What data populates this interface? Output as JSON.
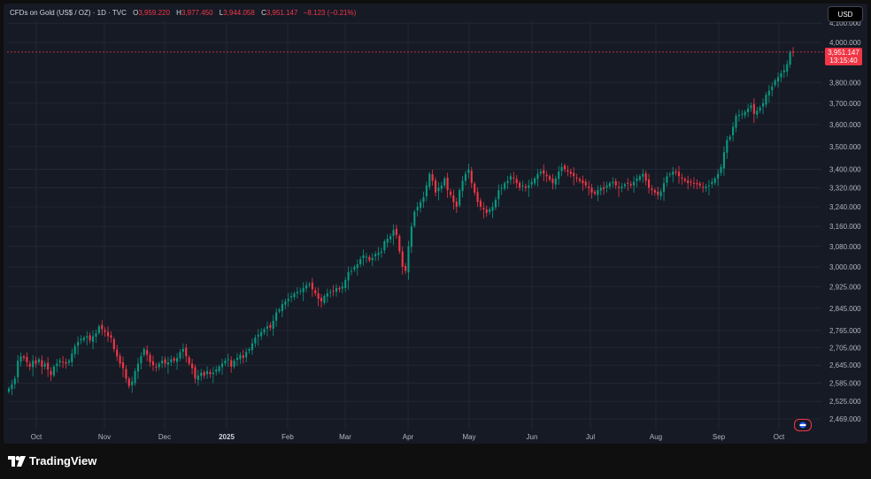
{
  "legend": {
    "symbol": "CFDs on Gold (US$ / OZ) · 1D · TVC",
    "open_label": "O",
    "open": "3,959.220",
    "high_label": "H",
    "high": "3,977.450",
    "low_label": "L",
    "low": "3,944.058",
    "close_label": "C",
    "close": "3,951.147",
    "change": "−8.123 (−0.21%)"
  },
  "currency_button": "USD",
  "last_price": "3,951.147",
  "countdown": "13:15:40",
  "brand": "TradingView",
  "colors": {
    "up": "#089981",
    "down": "#f23645",
    "background": "#161a25",
    "grid": "#232733"
  },
  "chart_data": {
    "type": "candlestick",
    "y_axis": {
      "ticks": [
        2469,
        2525,
        2585,
        2645,
        2705,
        2765,
        2845,
        2925,
        3000,
        3080,
        3160,
        3240,
        3320,
        3400,
        3500,
        3600,
        3700,
        3800,
        4000,
        4100
      ],
      "tick_labels": [
        "2,469.000",
        "2,525.000",
        "2,585.000",
        "2,645.000",
        "2,705.000",
        "2,765.000",
        "2,845.000",
        "2,925.000",
        "3,000.000",
        "3,080.000",
        "3,160.000",
        "3,240.000",
        "3,320.000",
        "3,400.000",
        "3,500.000",
        "3,600.000",
        "3,700.000",
        "3,800.000",
        "4,000.000",
        "4,100.000"
      ],
      "scale": "log"
    },
    "x_axis": {
      "labels": [
        "Oct",
        "Nov",
        "Dec",
        "2025",
        "Feb",
        "Mar",
        "Apr",
        "May",
        "Jun",
        "Jul",
        "Aug",
        "Sep",
        "Oct"
      ],
      "bold": [
        false,
        false,
        false,
        true,
        false,
        false,
        false,
        false,
        false,
        false,
        false,
        false,
        false
      ]
    },
    "start_date": "2024-09-23",
    "closes": [
      2567,
      2580,
      2600,
      2660,
      2675,
      2670,
      2655,
      2640,
      2660,
      2650,
      2665,
      2640,
      2650,
      2630,
      2612,
      2640,
      2650,
      2660,
      2655,
      2650,
      2660,
      2685,
      2710,
      2725,
      2735,
      2740,
      2745,
      2730,
      2745,
      2755,
      2780,
      2770,
      2760,
      2745,
      2740,
      2700,
      2675,
      2650,
      2635,
      2600,
      2575,
      2590,
      2625,
      2650,
      2675,
      2700,
      2680,
      2655,
      2645,
      2640,
      2650,
      2660,
      2650,
      2655,
      2665,
      2660,
      2670,
      2690,
      2700,
      2675,
      2650,
      2635,
      2600,
      2610,
      2620,
      2610,
      2625,
      2615,
      2620,
      2630,
      2640,
      2650,
      2660,
      2665,
      2640,
      2660,
      2670,
      2680,
      2670,
      2690,
      2700,
      2720,
      2740,
      2750,
      2760,
      2770,
      2780,
      2775,
      2800,
      2830,
      2840,
      2860,
      2870,
      2880,
      2890,
      2900,
      2905,
      2910,
      2920,
      2930,
      2935,
      2915,
      2900,
      2880,
      2870,
      2890,
      2900,
      2905,
      2910,
      2920,
      2915,
      2925,
      2950,
      2980,
      2985,
      3000,
      3010,
      3030,
      3045,
      3040,
      3025,
      3035,
      3050,
      3055,
      3060,
      3100,
      3110,
      3120,
      3145,
      3125,
      3060,
      3000,
      2985,
      3080,
      3160,
      3220,
      3240,
      3260,
      3280,
      3330,
      3380,
      3350,
      3300,
      3320,
      3330,
      3360,
      3310,
      3290,
      3260,
      3240,
      3310,
      3350,
      3380,
      3400,
      3340,
      3300,
      3260,
      3240,
      3230,
      3215,
      3230,
      3240,
      3270,
      3310,
      3320,
      3340,
      3350,
      3370,
      3360,
      3340,
      3320,
      3330,
      3320,
      3330,
      3345,
      3360,
      3380,
      3390,
      3380,
      3370,
      3355,
      3340,
      3360,
      3390,
      3410,
      3400,
      3390,
      3380,
      3370,
      3360,
      3350,
      3340,
      3330,
      3320,
      3300,
      3295,
      3310,
      3320,
      3315,
      3330,
      3340,
      3345,
      3330,
      3320,
      3325,
      3335,
      3340,
      3330,
      3345,
      3360,
      3370,
      3380,
      3350,
      3320,
      3310,
      3300,
      3290,
      3305,
      3340,
      3370,
      3380,
      3390,
      3385,
      3370,
      3360,
      3350,
      3340,
      3345,
      3340,
      3335,
      3330,
      3320,
      3325,
      3330,
      3345,
      3360,
      3380,
      3410,
      3475,
      3530,
      3545,
      3590,
      3640,
      3645,
      3650,
      3660,
      3675,
      3690,
      3650,
      3665,
      3680,
      3700,
      3740,
      3760,
      3780,
      3810,
      3825,
      3845,
      3860,
      3890,
      3950,
      3951.147
    ]
  }
}
